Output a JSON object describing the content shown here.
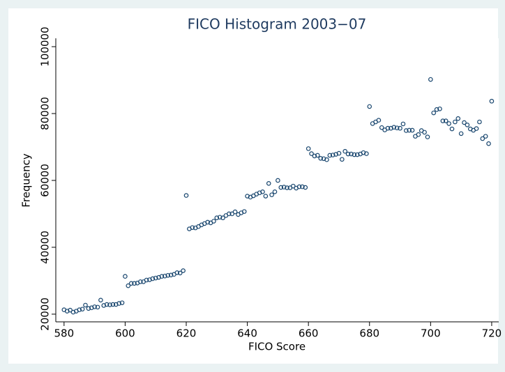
{
  "chart_data": {
    "type": "scatter",
    "title": "FICO Histogram 2003−07",
    "x_label": "FICO Score",
    "y_label": "Frequency",
    "color": "#1a476f",
    "grid": false,
    "xlim": [
      577.3,
      722.3
    ],
    "ylim": [
      17700,
      102500
    ],
    "xticks": [
      580,
      600,
      620,
      640,
      660,
      680,
      700,
      720
    ],
    "yticks": [
      20000,
      40000,
      60000,
      80000,
      100000
    ],
    "x": [
      580,
      581,
      582,
      583,
      584,
      585,
      586,
      587,
      588,
      589,
      590,
      591,
      592,
      593,
      594,
      595,
      596,
      597,
      598,
      599,
      600,
      601,
      602,
      603,
      604,
      605,
      606,
      607,
      608,
      609,
      610,
      611,
      612,
      613,
      614,
      615,
      616,
      617,
      618,
      619,
      620,
      621,
      622,
      623,
      624,
      625,
      626,
      627,
      628,
      629,
      630,
      631,
      632,
      633,
      634,
      635,
      636,
      637,
      638,
      639,
      640,
      641,
      642,
      643,
      644,
      645,
      646,
      647,
      648,
      649,
      650,
      651,
      652,
      653,
      654,
      655,
      656,
      657,
      658,
      659,
      660,
      661,
      662,
      663,
      664,
      665,
      666,
      667,
      668,
      669,
      670,
      671,
      672,
      673,
      674,
      675,
      676,
      677,
      678,
      679,
      680,
      681,
      682,
      683,
      684,
      685,
      686,
      687,
      688,
      689,
      690,
      691,
      692,
      693,
      694,
      695,
      696,
      697,
      698,
      699,
      700,
      701,
      702,
      703,
      704,
      705,
      706,
      707,
      708,
      709,
      710,
      711,
      712,
      713,
      714,
      715,
      716,
      717,
      718,
      719,
      720
    ],
    "values": [
      21300,
      20900,
      21200,
      20600,
      20900,
      21300,
      21500,
      22700,
      21700,
      21900,
      22200,
      22100,
      24200,
      22600,
      22900,
      22800,
      22900,
      22900,
      23200,
      23400,
      31300,
      28500,
      29200,
      29200,
      29300,
      29700,
      29700,
      30200,
      30300,
      30600,
      30800,
      31000,
      31300,
      31400,
      31600,
      31700,
      31900,
      32400,
      32300,
      33000,
      55500,
      45500,
      45900,
      45800,
      46200,
      46700,
      47100,
      47500,
      47300,
      47800,
      48800,
      49000,
      48800,
      49500,
      50000,
      50000,
      50600,
      49800,
      50300,
      50700,
      55300,
      55000,
      55400,
      55900,
      56300,
      56600,
      55300,
      59100,
      55700,
      56600,
      60000,
      57900,
      58000,
      57800,
      57800,
      58300,
      57700,
      58100,
      58100,
      57900,
      69500,
      68000,
      67300,
      67500,
      66600,
      66500,
      66200,
      67500,
      67600,
      67800,
      68100,
      66300,
      68700,
      67900,
      67900,
      67700,
      67700,
      67900,
      68300,
      68000,
      82100,
      77000,
      77500,
      78000,
      75800,
      75100,
      75600,
      75600,
      75900,
      75700,
      75600,
      76900,
      74900,
      75000,
      75000,
      73200,
      73700,
      74900,
      74400,
      73000,
      90200,
      80200,
      81200,
      81400,
      77800,
      77800,
      77000,
      75400,
      77500,
      78500,
      74000,
      77300,
      76600,
      75400,
      75000,
      75500,
      77500,
      72500,
      73200,
      71000,
      83700
    ]
  }
}
